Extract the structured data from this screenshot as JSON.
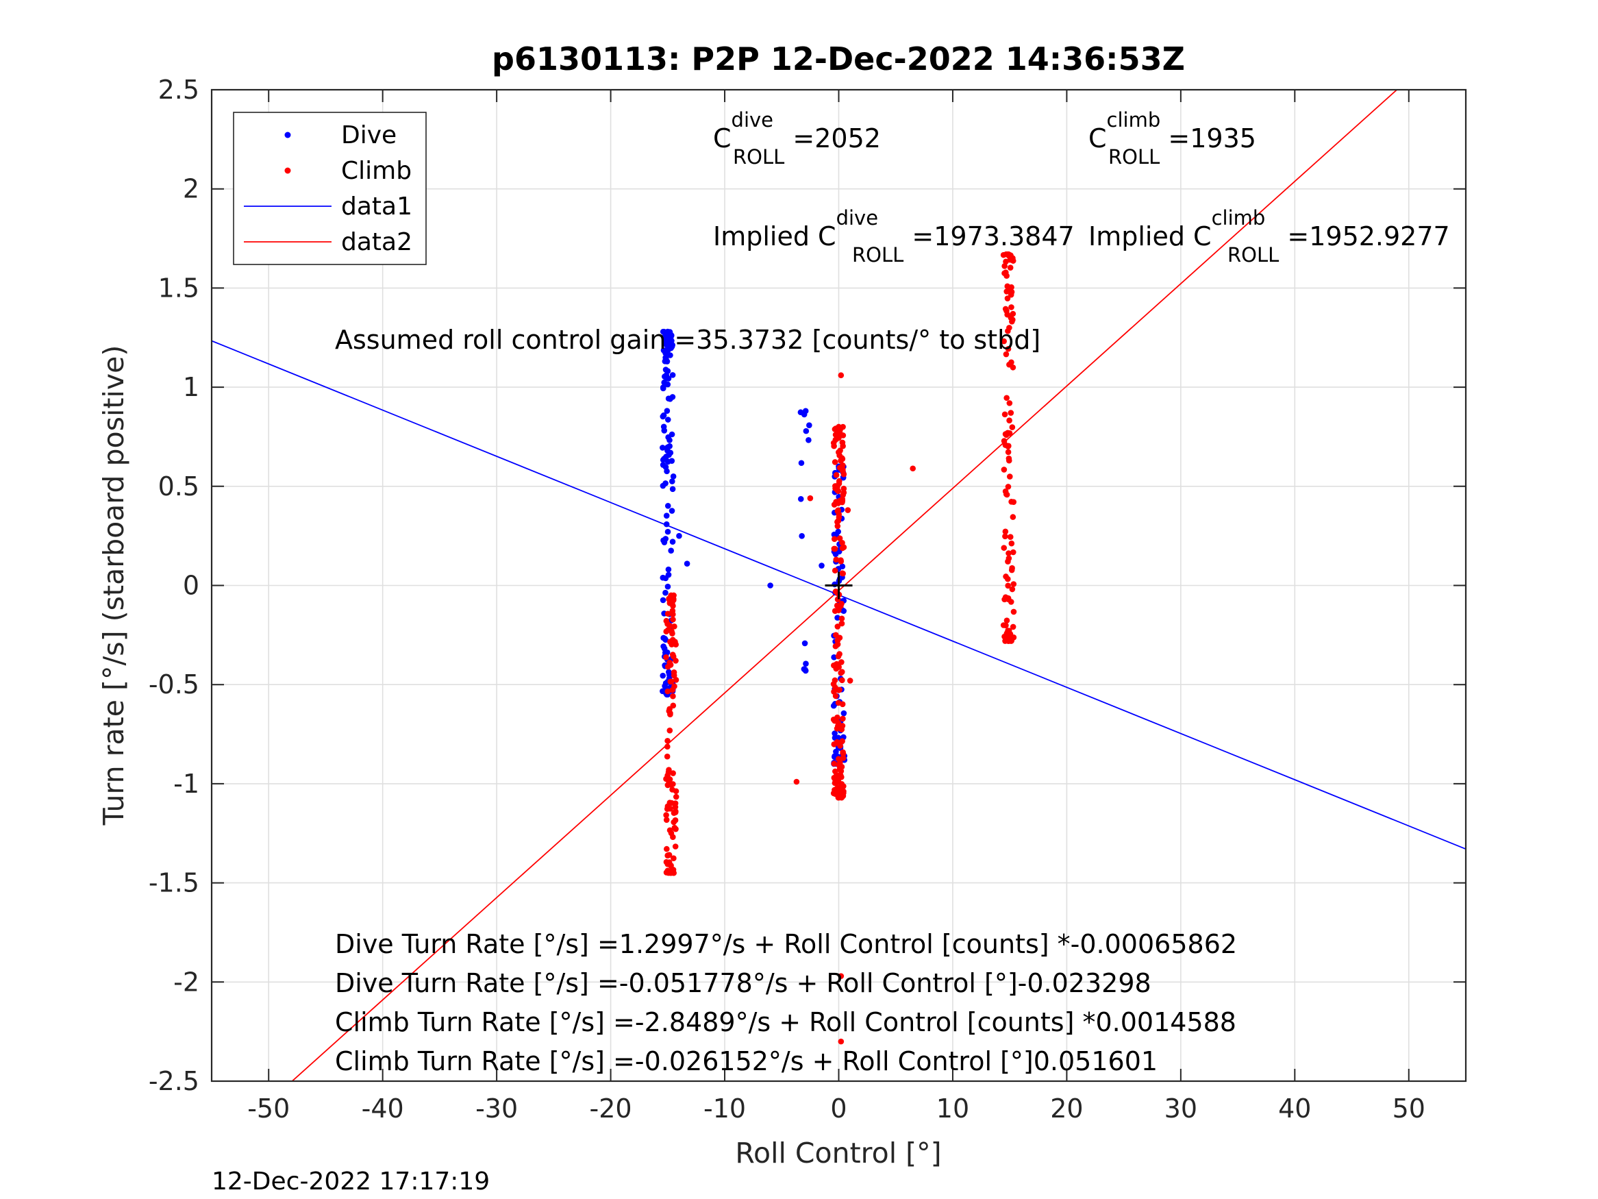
{
  "chart_data": {
    "type": "scatter",
    "title": "p6130113: P2P 12-Dec-2022 14:36:53Z",
    "xlabel": "Roll Control [°]",
    "ylabel": "Turn rate [°/s] (starboard positive)",
    "xlim": [
      -55,
      55
    ],
    "ylim": [
      -2.5,
      2.5
    ],
    "xticks": [
      -50,
      -40,
      -30,
      -20,
      -10,
      0,
      10,
      20,
      30,
      40,
      50
    ],
    "yticks": [
      -2.5,
      -2,
      -1.5,
      -1,
      -0.5,
      0,
      0.5,
      1,
      1.5,
      2,
      2.5
    ],
    "xtick_labels": [
      "-50",
      "-40",
      "-30",
      "-20",
      "-10",
      "0",
      "10",
      "20",
      "30",
      "40",
      "50"
    ],
    "ytick_labels": [
      "-2.5",
      "-2",
      "-1.5",
      "-1",
      "-0.5",
      "0",
      "0.5",
      "1",
      "1.5",
      "2",
      "2.5"
    ],
    "grid": true,
    "legend_position": "top-left",
    "series": [
      {
        "name": "Dive",
        "kind": "scatter",
        "color": "#0000ff",
        "clusters": [
          {
            "x": -15.0,
            "y_from": -0.55,
            "y_to": 1.28,
            "n": 130
          },
          {
            "x": -2.9,
            "y_from": -0.43,
            "y_to": 0.88,
            "n": 12
          },
          {
            "x": 0.0,
            "y_from": -0.9,
            "y_to": 0.6,
            "n": 70
          }
        ],
        "points": [
          [
            -6.0,
            0.0
          ],
          [
            -14.0,
            0.25
          ],
          [
            -13.3,
            0.11
          ],
          [
            -1.5,
            0.1
          ],
          [
            -14.5,
            0.55
          ],
          [
            0.5,
            -0.88
          ],
          [
            0.5,
            -0.86
          ],
          [
            -15.1,
            -0.53
          ]
        ]
      },
      {
        "name": "Climb",
        "kind": "scatter",
        "color": "#ff0000",
        "clusters": [
          {
            "x": -14.7,
            "y_from": -1.45,
            "y_to": -0.05,
            "n": 110
          },
          {
            "x": 0.0,
            "y_from": -1.07,
            "y_to": 0.8,
            "n": 160
          },
          {
            "x": 14.9,
            "y_from": -0.28,
            "y_to": 1.67,
            "n": 110
          }
        ],
        "points": [
          [
            -3.7,
            -0.99
          ],
          [
            6.5,
            0.59
          ],
          [
            0.2,
            1.06
          ],
          [
            0.2,
            -1.97
          ],
          [
            0.2,
            -2.3
          ],
          [
            1.0,
            -0.48
          ],
          [
            -2.5,
            0.44
          ],
          [
            0.8,
            0.38
          ]
        ]
      },
      {
        "name": "data1",
        "kind": "line",
        "color": "#0000ff",
        "x": [
          -55,
          55
        ],
        "y": [
          1.2337,
          -1.3293
        ]
      },
      {
        "name": "data2",
        "kind": "line",
        "color": "#ff0000",
        "x": [
          -55,
          55
        ],
        "y": [
          -2.8642,
          2.812
        ]
      }
    ],
    "center_marker": {
      "x": 0.0,
      "y": 0.0
    }
  },
  "annotations": {
    "c_dive_main": "C",
    "c_dive_sup": "dive",
    "c_dive_sub": "ROLL",
    "c_dive_value": " =2052",
    "c_climb_main": "C",
    "c_climb_sup": "climb",
    "c_climb_sub": "ROLL",
    "c_climb_value": " =1935",
    "implied_dive_main": "Implied C",
    "implied_dive_sup": "dive",
    "implied_dive_sub": "ROLL",
    "implied_dive_value": " =1973.3847",
    "implied_climb_main": "Implied C",
    "implied_climb_sup": "climb",
    "implied_climb_sub": "ROLL",
    "implied_climb_value": " =1952.9277",
    "gain": "Assumed roll control gain =35.3732 [counts/° to stbd]",
    "eq1": "Dive Turn Rate [°/s] =1.2997°/s + Roll Control [counts] *-0.00065862",
    "eq2": "Dive Turn Rate [°/s] =-0.051778°/s + Roll Control [°]-0.023298",
    "eq3": "Climb Turn Rate [°/s] =-2.8489°/s + Roll Control [counts] *0.0014588",
    "eq4": "Climb Turn Rate [°/s] =-0.026152°/s + Roll Control [°]0.051601"
  },
  "timestamp": "12-Dec-2022 17:17:19"
}
